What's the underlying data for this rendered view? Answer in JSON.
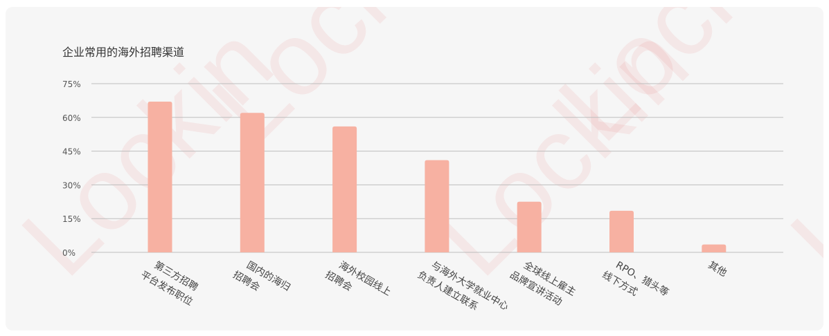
{
  "watermark": "Lockin",
  "colors": {
    "bar": "#f7b1a2",
    "grid": "#bdbdbd",
    "axis_text": "#555555",
    "category_text": "#444444",
    "card": "#f6f6f6"
  },
  "chart_data": {
    "type": "bar",
    "title": "企业常用的海外招聘渠道",
    "xlabel": "",
    "ylabel": "",
    "ylim": [
      0,
      75
    ],
    "yticks": [
      0,
      15,
      30,
      45,
      60,
      75
    ],
    "ytick_labels": [
      "0%",
      "15%",
      "30%",
      "45%",
      "60%",
      "75%"
    ],
    "grid": true,
    "categories": [
      [
        "第三方招聘",
        "平台发布职位"
      ],
      [
        "国内的海归",
        "招聘会"
      ],
      [
        "海外校园线上",
        "招聘会"
      ],
      [
        "与海外大学就业中心",
        "负责人建立联系"
      ],
      [
        "全球线上雇主",
        "品牌宣讲活动"
      ],
      [
        "RPO、猎头等",
        "线下方式"
      ],
      [
        "其他"
      ]
    ],
    "values": [
      67,
      62,
      56,
      41,
      22.5,
      18.5,
      3.5
    ]
  }
}
